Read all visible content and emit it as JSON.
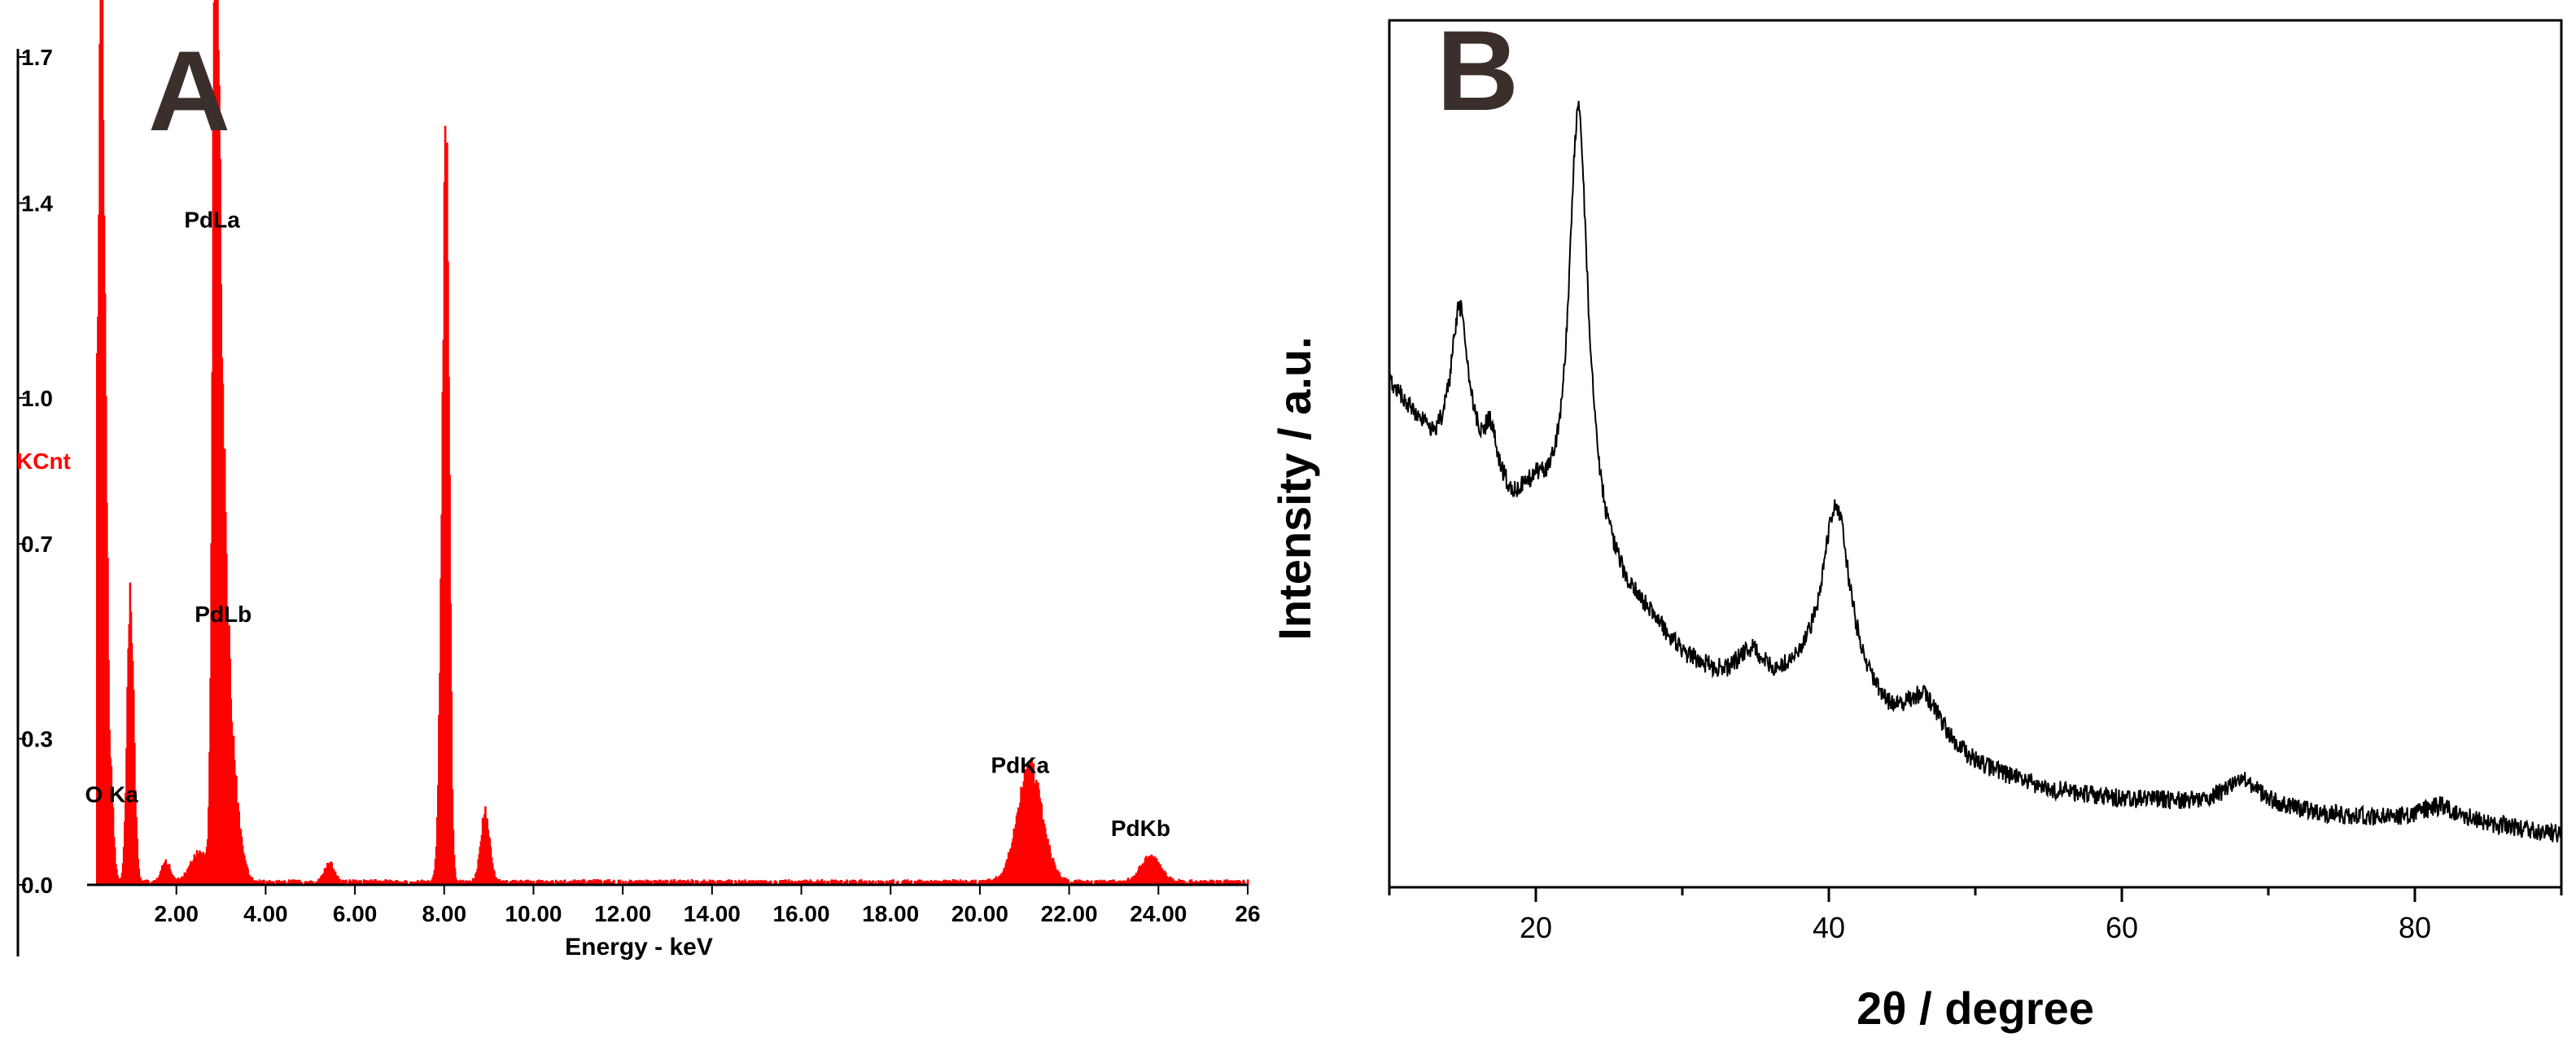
{
  "chart_data": [
    {
      "panel_label": "A",
      "type": "bar",
      "ylabel": "KCnt",
      "xlabel": "Energy - keV",
      "xlim": [
        0,
        26
      ],
      "ylim": [
        0,
        1.7
      ],
      "x_ticks": [
        2,
        4,
        6,
        8,
        10,
        12,
        14,
        16,
        18,
        20,
        22,
        24,
        26
      ],
      "x_tick_labels": [
        "2.00",
        "4.00",
        "6.00",
        "8.00",
        "10.00",
        "12.00",
        "14.00",
        "16.00",
        "18.00",
        "20.00",
        "22.00",
        "24.00",
        "26"
      ],
      "y_ticks": [
        0.0,
        0.3,
        0.7,
        1.0,
        1.4,
        1.7
      ],
      "y_tick_labels": [
        "0.0",
        "0.3",
        "0.7",
        "1.0",
        "1.4",
        "1.7"
      ],
      "peaks": [
        {
          "energy": 0.28,
          "height": 1.67,
          "width": 0.08
        },
        {
          "energy": 0.38,
          "height": 0.52,
          "width": 0.06
        },
        {
          "energy": 0.52,
          "height": 0.16,
          "width": 0.06
        },
        {
          "energy": 0.9,
          "height": 0.05,
          "width": 0.08
        },
        {
          "energy": 0.93,
          "height": 0.49,
          "width": 0.06
        },
        {
          "energy": 1.02,
          "height": 0.18,
          "width": 0.06
        },
        {
          "energy": 1.75,
          "height": 0.04,
          "width": 0.1
        },
        {
          "energy": 2.5,
          "height": 0.06,
          "width": 0.2
        },
        {
          "energy": 2.84,
          "height": 1.21,
          "width": 0.06
        },
        {
          "energy": 2.9,
          "height": 0.75,
          "width": 0.08
        },
        {
          "energy": 2.99,
          "height": 0.55,
          "width": 0.1
        },
        {
          "energy": 3.12,
          "height": 0.3,
          "width": 0.12
        },
        {
          "energy": 3.3,
          "height": 0.12,
          "width": 0.15
        },
        {
          "energy": 5.41,
          "height": 0.04,
          "width": 0.1
        },
        {
          "energy": 7.98,
          "height": 0.99,
          "width": 0.08
        },
        {
          "energy": 8.05,
          "height": 0.68,
          "width": 0.06
        },
        {
          "energy": 8.9,
          "height": 0.14,
          "width": 0.1
        },
        {
          "energy": 21.1,
          "height": 0.23,
          "width": 0.28
        },
        {
          "energy": 23.8,
          "height": 0.05,
          "width": 0.22
        }
      ],
      "annotations": [
        {
          "text": "PdLa",
          "x": 2.8,
          "y": 1.35
        },
        {
          "text": "PdLb",
          "x": 3.05,
          "y": 0.54
        },
        {
          "text": "O Ka",
          "x": 0.55,
          "y": 0.17
        },
        {
          "text": "PdKa",
          "x": 20.9,
          "y": 0.23
        },
        {
          "text": "PdKb",
          "x": 23.6,
          "y": 0.1
        }
      ]
    },
    {
      "panel_label": "B",
      "type": "line",
      "xlabel": "2θ / degree",
      "ylabel": "Intensity / a.u.",
      "xlim": [
        10,
        90
      ],
      "ylim": [
        0,
        1
      ],
      "x_ticks": [
        20,
        40,
        60,
        80
      ],
      "x_tick_labels": [
        "20",
        "40",
        "60",
        "80"
      ],
      "baseline": [
        [
          10,
          0.58
        ],
        [
          12,
          0.53
        ],
        [
          13,
          0.5
        ],
        [
          15,
          0.49
        ],
        [
          17,
          0.46
        ],
        [
          18.5,
          0.43
        ],
        [
          20,
          0.44
        ],
        [
          22,
          0.38
        ],
        [
          24,
          0.37
        ],
        [
          26,
          0.33
        ],
        [
          28,
          0.3
        ],
        [
          30,
          0.26
        ],
        [
          33,
          0.23
        ],
        [
          36,
          0.22
        ],
        [
          38,
          0.23
        ],
        [
          40,
          0.23
        ],
        [
          42,
          0.21
        ],
        [
          44,
          0.18
        ],
        [
          47,
          0.16
        ],
        [
          50,
          0.135
        ],
        [
          55,
          0.11
        ],
        [
          60,
          0.1
        ],
        [
          65,
          0.095
        ],
        [
          70,
          0.09
        ],
        [
          75,
          0.08
        ],
        [
          80,
          0.075
        ],
        [
          85,
          0.07
        ],
        [
          90,
          0.06
        ]
      ],
      "peaks": [
        {
          "center": 14.8,
          "height": 0.17,
          "fwhm": 1.4
        },
        {
          "center": 16.9,
          "height": 0.05,
          "fwhm": 1.0
        },
        {
          "center": 22.9,
          "height": 0.52,
          "fwhm": 1.6
        },
        {
          "center": 34.7,
          "height": 0.04,
          "fwhm": 2.5
        },
        {
          "center": 40.5,
          "height": 0.21,
          "fwhm": 2.3
        },
        {
          "center": 46.5,
          "height": 0.05,
          "fwhm": 3.0
        },
        {
          "center": 68.2,
          "height": 0.03,
          "fwhm": 3.0
        },
        {
          "center": 81.8,
          "height": 0.02,
          "fwhm": 3.5
        }
      ]
    }
  ],
  "colors": {
    "eds_red": "#ff0000",
    "xrd_black": "#000000",
    "panel_label": "#3a2f2a",
    "axis": "#000000",
    "ylabel_a": "#ff0000"
  }
}
